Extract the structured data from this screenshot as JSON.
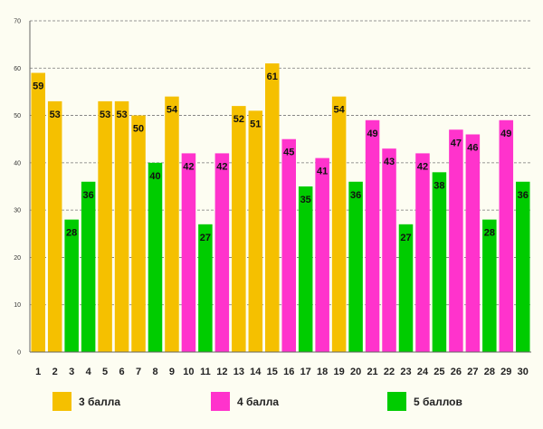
{
  "chart_data": {
    "type": "bar",
    "title": "",
    "xlabel": "",
    "ylabel": "",
    "ylim": [
      0,
      70
    ],
    "yticks": [
      0,
      10,
      20,
      30,
      40,
      50,
      60,
      70
    ],
    "grid": true,
    "legend_position": "bottom",
    "categories": [
      "1",
      "2",
      "3",
      "4",
      "5",
      "6",
      "7",
      "8",
      "9",
      "10",
      "11",
      "12",
      "13",
      "14",
      "15",
      "16",
      "17",
      "18",
      "19",
      "20",
      "21",
      "22",
      "23",
      "24",
      "25",
      "26",
      "27",
      "28",
      "29",
      "30"
    ],
    "values": [
      59,
      53,
      28,
      36,
      53,
      53,
      50,
      40,
      54,
      42,
      27,
      42,
      52,
      51,
      61,
      45,
      35,
      41,
      54,
      36,
      49,
      43,
      27,
      42,
      38,
      47,
      46,
      28,
      49,
      36
    ],
    "grade_groups": [
      "3 балла",
      "3 балла",
      "5 баллов",
      "5 баллов",
      "3 балла",
      "3 балла",
      "3 балла",
      "5 баллов",
      "3 балла",
      "4 балла",
      "5 баллов",
      "4 балла",
      "3 балла",
      "3 балла",
      "3 балла",
      "4 балла",
      "5 баллов",
      "4 балла",
      "3 балла",
      "5 баллов",
      "4 балла",
      "4 балла",
      "5 баллов",
      "4 балла",
      "5 баллов",
      "4 балла",
      "4 балла",
      "5 баллов",
      "4 балла",
      "5 баллов"
    ],
    "series": [
      {
        "name": "3 балла",
        "color": "#f5c000"
      },
      {
        "name": "4 балла",
        "color": "#ff33cc"
      },
      {
        "name": "5 баллов",
        "color": "#00cc00"
      }
    ]
  }
}
